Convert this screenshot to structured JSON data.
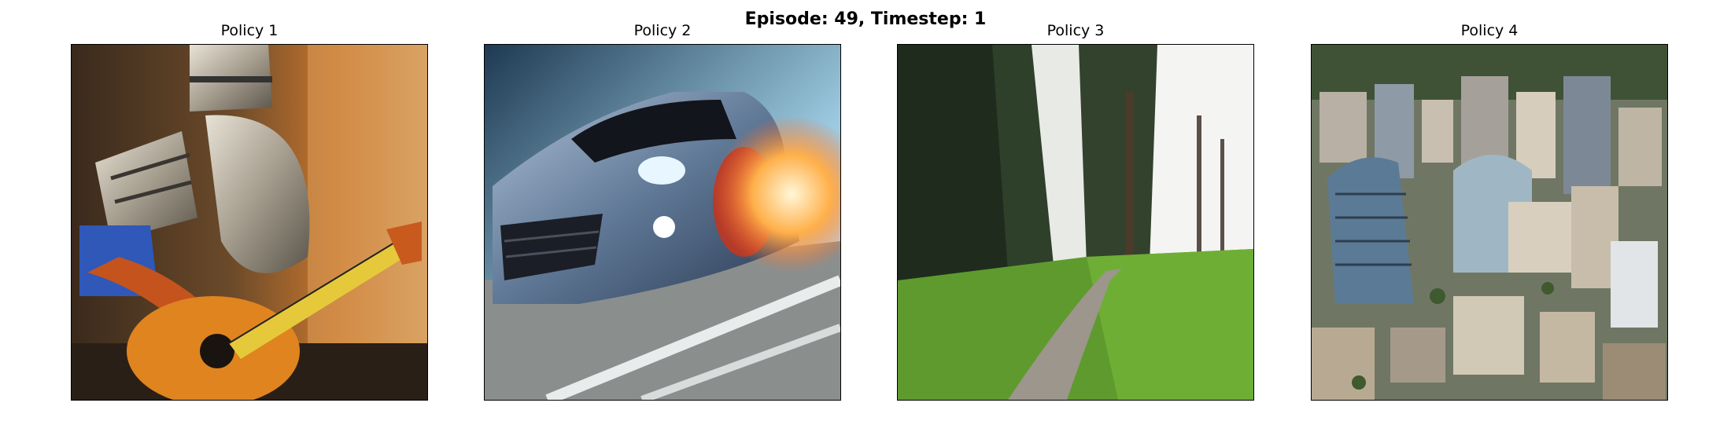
{
  "figure": {
    "title": "Episode: 49, Timestep: 1"
  },
  "panels": [
    {
      "title": "Policy 1",
      "image": "cubist-knight-playing-guitar"
    },
    {
      "title": "Policy 2",
      "image": "speeding-car"
    },
    {
      "title": "Policy 3",
      "image": "forest-path"
    },
    {
      "title": "Policy 4",
      "image": "aerial-city"
    }
  ]
}
